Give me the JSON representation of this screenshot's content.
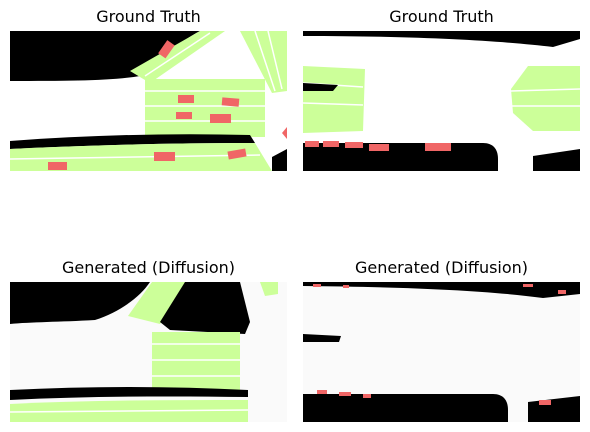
{
  "panels": [
    {
      "title": "Ground Truth"
    },
    {
      "title": "Ground Truth"
    },
    {
      "title": "Generated (Diffusion)"
    },
    {
      "title": "Generated (Diffusion)"
    }
  ],
  "colors": {
    "background_road": "#ffffff",
    "off_road": "#000000",
    "lane_area": "#ccff99",
    "vehicle": "#f06666"
  }
}
